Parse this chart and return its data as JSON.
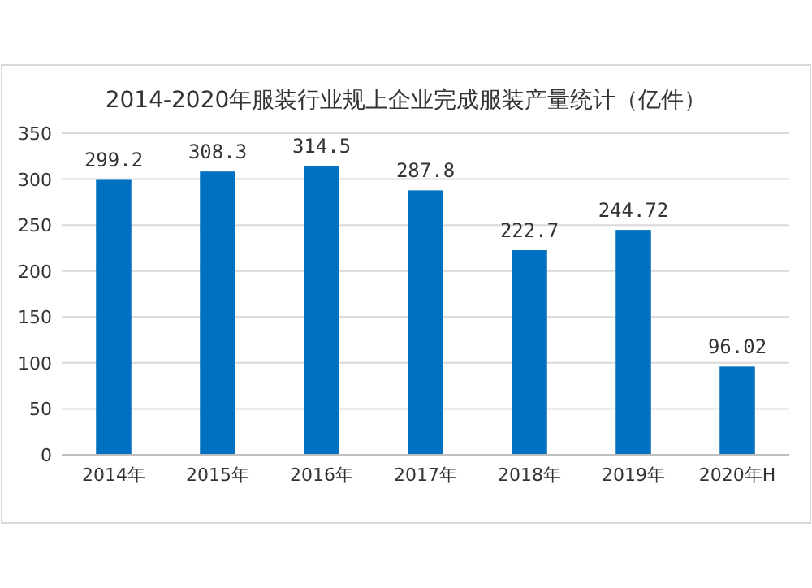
{
  "chart_data": {
    "type": "bar",
    "title": "2014-2020年服装行业规上企业完成服装产量统计（亿件）",
    "categories": [
      "2014年",
      "2015年",
      "2016年",
      "2017年",
      "2018年",
      "2019年",
      "2020年H"
    ],
    "values": [
      299.2,
      308.3,
      314.5,
      287.8,
      222.7,
      244.72,
      96.02
    ],
    "color": "#0070c0",
    "ylim": [
      0,
      350
    ],
    "yticks": [
      0,
      50,
      100,
      150,
      200,
      250,
      300,
      350
    ],
    "grid": "y",
    "data_labels": true
  }
}
